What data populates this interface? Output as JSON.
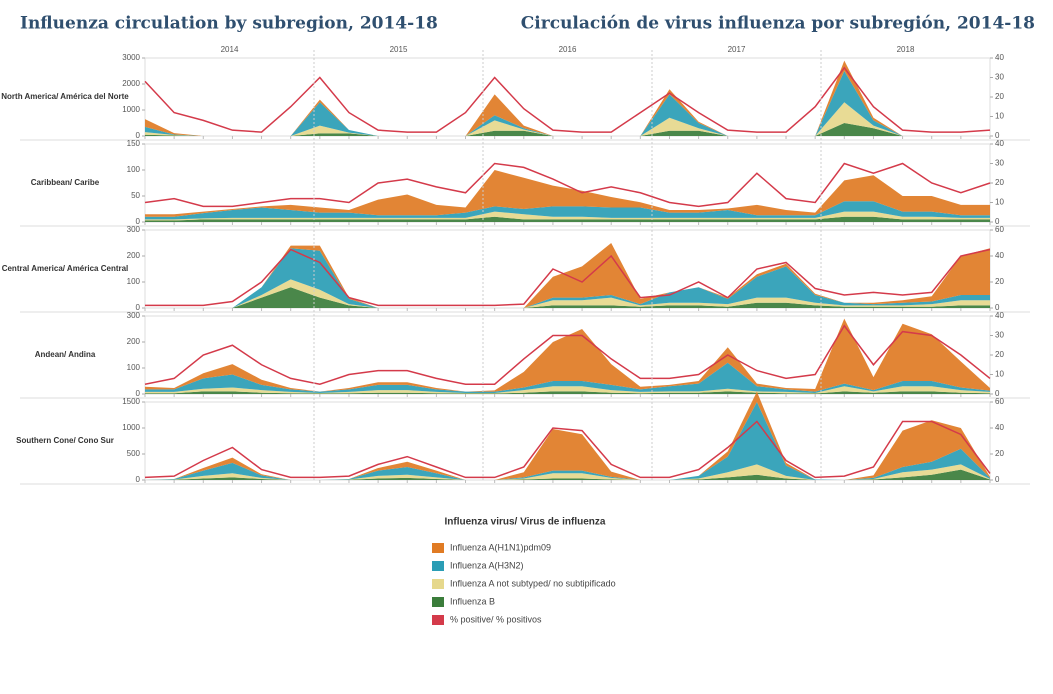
{
  "title": "Influenza circulation by subregion, 2014-18",
  "title_es": "Circulación de virus influenza por subregión, 2014-18",
  "legend_title": "Influenza virus/ Virus de influenza",
  "chart_data": [
    {
      "type": "area",
      "title": "North America/ América del Norte",
      "xgroups": [
        "2014",
        "2015",
        "2016",
        "2017",
        "2018"
      ],
      "categories": [
        null,
        null,
        null,
        null,
        null,
        null,
        null,
        null,
        null,
        null,
        null,
        null,
        null,
        null,
        null,
        null,
        null,
        null,
        null,
        null,
        null,
        null,
        null,
        null,
        null,
        null,
        null,
        null,
        null,
        null
      ],
      "ylim": [
        0,
        3000
      ],
      "yticks": [
        0,
        1000,
        2000,
        3000
      ],
      "y2lim": [
        0,
        40
      ],
      "y2ticks": [
        0,
        10,
        20,
        30,
        40
      ],
      "series": [
        {
          "name": "Influenza A(H1N1)pdm09",
          "color": "#e07b24",
          "values": [
            300,
            50,
            0,
            0,
            0,
            0,
            100,
            0,
            0,
            0,
            0,
            0,
            800,
            100,
            0,
            0,
            0,
            0,
            200,
            50,
            0,
            0,
            0,
            0,
            400,
            100,
            0,
            0,
            0,
            0
          ]
        },
        {
          "name": "Influenza A(H3N2)",
          "color": "#2a9db5",
          "values": [
            200,
            20,
            0,
            0,
            0,
            0,
            900,
            100,
            0,
            0,
            0,
            0,
            200,
            50,
            0,
            0,
            0,
            0,
            900,
            200,
            0,
            0,
            0,
            0,
            1200,
            200,
            0,
            0,
            0,
            0
          ]
        },
        {
          "name": "Influenza A not subtyped/ no subtipificado",
          "color": "#e6d88c",
          "values": [
            100,
            20,
            0,
            0,
            0,
            0,
            300,
            30,
            0,
            0,
            0,
            0,
            400,
            50,
            0,
            0,
            0,
            0,
            500,
            100,
            0,
            0,
            0,
            0,
            800,
            100,
            0,
            0,
            0,
            0
          ]
        },
        {
          "name": "Influenza B",
          "color": "#3b7d3b",
          "values": [
            50,
            20,
            0,
            0,
            0,
            0,
            100,
            100,
            0,
            0,
            0,
            0,
            200,
            200,
            0,
            0,
            0,
            0,
            200,
            200,
            0,
            0,
            0,
            0,
            500,
            300,
            0,
            0,
            0,
            0
          ]
        },
        {
          "name": "% positive/ % positivos",
          "color": "#d43a4a",
          "axis": "y2",
          "values": [
            28,
            12,
            8,
            3,
            2,
            15,
            30,
            12,
            3,
            2,
            2,
            12,
            30,
            14,
            3,
            2,
            2,
            12,
            22,
            12,
            3,
            2,
            2,
            15,
            35,
            15,
            3,
            2,
            2,
            3
          ]
        }
      ]
    },
    {
      "type": "area",
      "title": "Caribbean/ Caribe",
      "categories": [
        null,
        null,
        null,
        null,
        null,
        null,
        null,
        null,
        null,
        null,
        null,
        null,
        null,
        null,
        null,
        null,
        null,
        null,
        null,
        null,
        null,
        null,
        null,
        null,
        null,
        null,
        null,
        null,
        null,
        null
      ],
      "ylim": [
        0,
        150
      ],
      "yticks": [
        0,
        50,
        100,
        150
      ],
      "y2lim": [
        0,
        40
      ],
      "y2ticks": [
        0,
        10,
        20,
        30,
        40
      ],
      "series": [
        {
          "values": [
            5,
            5,
            3,
            2,
            2,
            10,
            10,
            5,
            30,
            40,
            20,
            10,
            70,
            60,
            40,
            30,
            20,
            10,
            5,
            5,
            3,
            20,
            10,
            5,
            40,
            50,
            30,
            30,
            20,
            20
          ]
        },
        {
          "values": [
            5,
            5,
            10,
            15,
            20,
            15,
            10,
            10,
            5,
            5,
            5,
            10,
            10,
            10,
            20,
            20,
            20,
            20,
            10,
            10,
            15,
            5,
            5,
            5,
            20,
            20,
            10,
            10,
            5,
            5
          ]
        },
        {
          "values": [
            2,
            2,
            2,
            3,
            3,
            3,
            3,
            3,
            3,
            3,
            3,
            3,
            10,
            10,
            5,
            5,
            3,
            3,
            3,
            3,
            3,
            3,
            3,
            3,
            10,
            10,
            5,
            5,
            3,
            3
          ]
        },
        {
          "values": [
            3,
            3,
            5,
            5,
            5,
            5,
            5,
            5,
            5,
            5,
            5,
            5,
            10,
            5,
            5,
            5,
            5,
            5,
            5,
            5,
            5,
            5,
            5,
            5,
            10,
            10,
            5,
            5,
            5,
            5
          ]
        },
        {
          "axis": "y2",
          "values": [
            10,
            12,
            8,
            8,
            10,
            12,
            12,
            10,
            20,
            22,
            18,
            15,
            30,
            28,
            22,
            15,
            18,
            15,
            10,
            8,
            10,
            25,
            12,
            10,
            30,
            25,
            30,
            20,
            15,
            20
          ]
        }
      ]
    },
    {
      "type": "area",
      "title": "Central America/ América Central",
      "categories": [
        null,
        null,
        null,
        null,
        null,
        null,
        null,
        null,
        null,
        null,
        null,
        null,
        null,
        null,
        null,
        null,
        null,
        null,
        null,
        null,
        null,
        null,
        null,
        null,
        null,
        null,
        null,
        null,
        null,
        null
      ],
      "ylim": [
        0,
        300
      ],
      "yticks": [
        0,
        100,
        200,
        300
      ],
      "y2lim": [
        0,
        60
      ],
      "y2ticks": [
        0,
        20,
        40,
        60
      ],
      "series": [
        {
          "values": [
            0,
            0,
            0,
            0,
            0,
            10,
            20,
            5,
            0,
            0,
            0,
            0,
            0,
            0,
            80,
            120,
            200,
            20,
            0,
            0,
            5,
            10,
            10,
            5,
            0,
            5,
            10,
            20,
            150,
            180
          ]
        },
        {
          "values": [
            0,
            0,
            0,
            0,
            30,
            120,
            150,
            20,
            0,
            0,
            0,
            0,
            0,
            0,
            10,
            10,
            10,
            5,
            40,
            60,
            20,
            80,
            120,
            30,
            10,
            5,
            10,
            10,
            20,
            20
          ]
        },
        {
          "values": [
            0,
            0,
            0,
            0,
            10,
            30,
            30,
            5,
            0,
            0,
            0,
            0,
            0,
            0,
            20,
            20,
            30,
            5,
            10,
            10,
            10,
            20,
            20,
            10,
            5,
            5,
            5,
            10,
            20,
            20
          ]
        },
        {
          "values": [
            0,
            0,
            0,
            0,
            40,
            80,
            40,
            10,
            0,
            0,
            0,
            0,
            0,
            0,
            10,
            10,
            10,
            5,
            10,
            10,
            5,
            20,
            20,
            10,
            5,
            5,
            5,
            5,
            10,
            10
          ]
        },
        {
          "axis": "y2",
          "values": [
            2,
            2,
            2,
            5,
            20,
            45,
            35,
            8,
            2,
            2,
            2,
            2,
            2,
            3,
            30,
            20,
            40,
            8,
            10,
            20,
            8,
            30,
            35,
            15,
            10,
            12,
            10,
            12,
            40,
            45
          ]
        }
      ]
    },
    {
      "type": "area",
      "title": "Andean/ Andina",
      "categories": [
        null,
        null,
        null,
        null,
        null,
        null,
        null,
        null,
        null,
        null,
        null,
        null,
        null,
        null,
        null,
        null,
        null,
        null,
        null,
        null,
        null,
        null,
        null,
        null,
        null,
        null,
        null,
        null,
        null,
        null
      ],
      "ylim": [
        0,
        300
      ],
      "yticks": [
        0,
        100,
        200,
        300
      ],
      "y2lim": [
        0,
        40
      ],
      "y2ticks": [
        0,
        10,
        20,
        30,
        40
      ],
      "series": [
        {
          "values": [
            10,
            5,
            20,
            40,
            20,
            5,
            0,
            5,
            10,
            10,
            5,
            0,
            5,
            60,
            150,
            200,
            80,
            10,
            5,
            10,
            60,
            10,
            5,
            10,
            250,
            50,
            220,
            180,
            100,
            10
          ]
        },
        {
          "values": [
            10,
            10,
            40,
            50,
            20,
            10,
            5,
            10,
            20,
            20,
            10,
            5,
            5,
            10,
            20,
            20,
            20,
            10,
            20,
            30,
            100,
            20,
            10,
            5,
            10,
            5,
            20,
            20,
            10,
            5
          ]
        },
        {
          "values": [
            5,
            5,
            10,
            15,
            10,
            5,
            2,
            5,
            10,
            10,
            5,
            2,
            2,
            10,
            20,
            20,
            10,
            5,
            5,
            5,
            10,
            5,
            5,
            2,
            20,
            5,
            20,
            20,
            10,
            5
          ]
        },
        {
          "values": [
            3,
            3,
            10,
            10,
            5,
            3,
            2,
            3,
            5,
            5,
            3,
            2,
            2,
            5,
            10,
            10,
            5,
            3,
            5,
            5,
            10,
            5,
            3,
            2,
            10,
            5,
            10,
            10,
            5,
            3
          ]
        },
        {
          "axis": "y2",
          "values": [
            5,
            8,
            20,
            25,
            15,
            8,
            5,
            10,
            12,
            12,
            8,
            5,
            5,
            18,
            30,
            30,
            18,
            8,
            8,
            10,
            20,
            12,
            8,
            10,
            35,
            15,
            32,
            30,
            20,
            8
          ]
        }
      ]
    },
    {
      "type": "area",
      "title": "Southern Cone/ Cono Sur",
      "categories": [
        null,
        null,
        null,
        null,
        null,
        null,
        null,
        null,
        null,
        null,
        null,
        null,
        null,
        null,
        null,
        null,
        null,
        null,
        null,
        null,
        null,
        null,
        null,
        null,
        null,
        null,
        null,
        null,
        null,
        null
      ],
      "ylim": [
        0,
        1500
      ],
      "yticks": [
        0,
        500,
        1000,
        1500
      ],
      "y2lim": [
        0,
        60
      ],
      "y2ticks": [
        0,
        20,
        40,
        60
      ],
      "series": [
        {
          "values": [
            0,
            0,
            50,
            100,
            20,
            0,
            0,
            0,
            50,
            100,
            50,
            0,
            0,
            100,
            800,
            700,
            100,
            0,
            0,
            0,
            100,
            200,
            50,
            0,
            0,
            50,
            700,
            800,
            400,
            20
          ]
        },
        {
          "values": [
            0,
            10,
            100,
            200,
            50,
            0,
            0,
            10,
            100,
            150,
            80,
            0,
            0,
            20,
            50,
            50,
            20,
            0,
            0,
            50,
            300,
            1200,
            200,
            10,
            0,
            20,
            100,
            150,
            300,
            20
          ]
        },
        {
          "values": [
            0,
            5,
            50,
            80,
            20,
            0,
            0,
            5,
            50,
            60,
            30,
            0,
            0,
            20,
            100,
            100,
            30,
            0,
            0,
            20,
            100,
            200,
            50,
            0,
            0,
            10,
            100,
            100,
            100,
            10
          ]
        },
        {
          "values": [
            0,
            5,
            30,
            50,
            20,
            0,
            0,
            5,
            30,
            40,
            20,
            0,
            0,
            10,
            30,
            30,
            10,
            0,
            0,
            10,
            50,
            100,
            30,
            0,
            0,
            10,
            50,
            100,
            200,
            10
          ]
        },
        {
          "axis": "y2",
          "values": [
            2,
            3,
            15,
            25,
            8,
            2,
            2,
            3,
            12,
            18,
            10,
            2,
            2,
            10,
            40,
            38,
            12,
            2,
            2,
            8,
            25,
            45,
            15,
            2,
            3,
            10,
            45,
            45,
            35,
            5
          ]
        }
      ]
    }
  ]
}
